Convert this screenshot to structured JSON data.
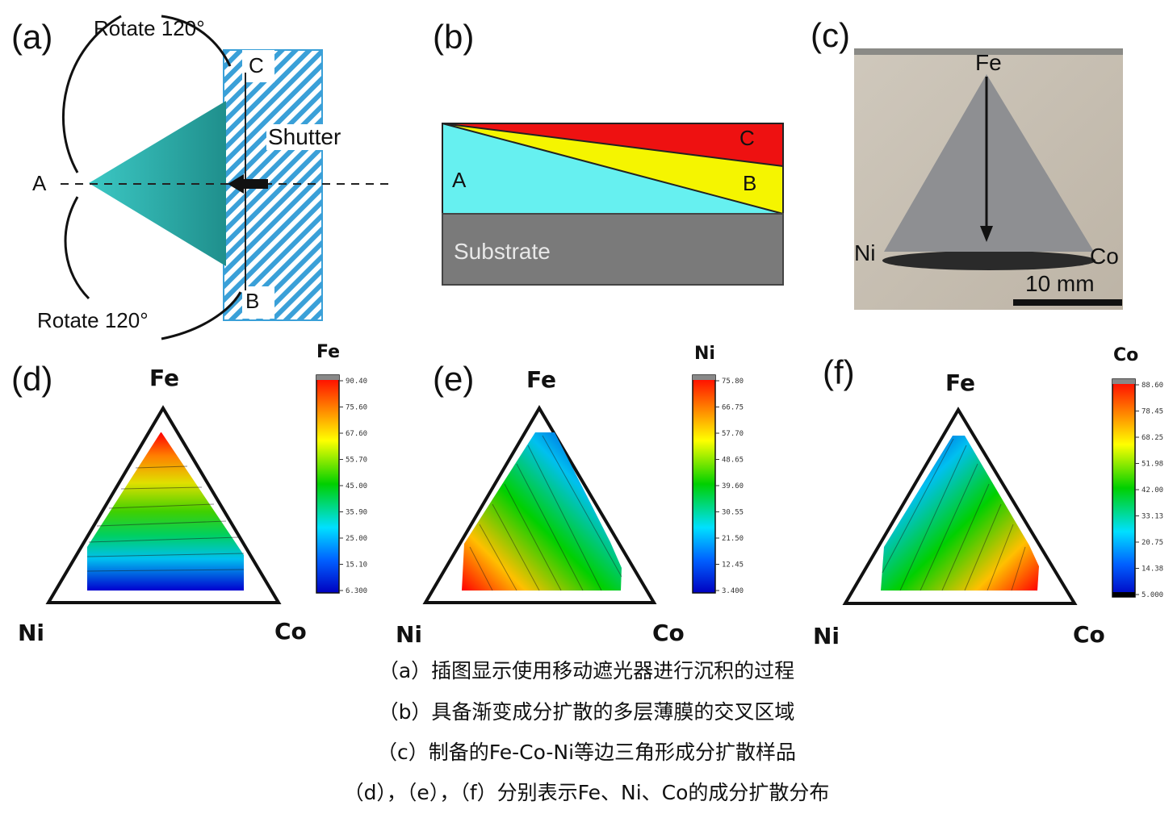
{
  "panels": {
    "a": {
      "label": "(a)",
      "rotate_top": "Rotate 120°",
      "rotate_bottom": "Rotate 120°",
      "point_a": "A",
      "point_b": "B",
      "point_c": "C",
      "shutter": "Shutter"
    },
    "b": {
      "label": "(b)",
      "layer_a": "A",
      "layer_b": "B",
      "layer_c": "C",
      "substrate": "Substrate"
    },
    "c": {
      "label": "(c)",
      "fe": "Fe",
      "ni": "Ni",
      "co": "Co",
      "scale": "10 mm"
    },
    "d": {
      "label": "(d)",
      "top": "Fe",
      "left": "Ni",
      "right": "Co",
      "colorbar_title": "Fe",
      "ticks": [
        "90.40",
        "75.60",
        "67.60",
        "55.70",
        "45.00",
        "35.90",
        "25.00",
        "15.10",
        "6.300"
      ]
    },
    "e": {
      "label": "(e)",
      "top": "Fe",
      "left": "Ni",
      "right": "Co",
      "colorbar_title": "Ni",
      "ticks": [
        "75.80",
        "66.75",
        "57.70",
        "48.65",
        "39.60",
        "30.55",
        "21.50",
        "12.45",
        "3.400"
      ]
    },
    "f": {
      "label": "(f)",
      "top": "Fe",
      "left": "Ni",
      "right": "Co",
      "colorbar_title": "Co",
      "ticks": [
        "88.60",
        "78.45",
        "68.25",
        "51.98",
        "42.00",
        "33.13",
        "20.75",
        "14.38",
        "5.000"
      ]
    }
  },
  "caption": [
    "（a）插图显示使用移动遮光器进行沉积的过程",
    "（b）具备渐变成分扩散的多层薄膜的交叉区域",
    "（c）制备的Fe-Co-Ni等边三角形成分扩散样品",
    "（d），（e），（f）分别表示Fe、Ni、Co的成分扩散分布"
  ],
  "colors": {
    "teal": "#2fb5b0",
    "shutter": "#3aa0d8",
    "cyan": "#66f0f0",
    "yellow": "#f5f500",
    "red": "#ee1111",
    "substrate": "#7a7a7a"
  }
}
